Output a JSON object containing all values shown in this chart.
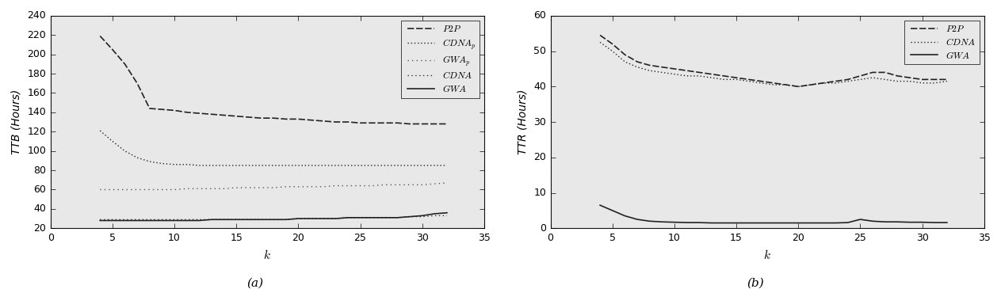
{
  "left": {
    "title": "(a)",
    "xlabel": "k",
    "ylabel": "TTB (Hours)",
    "xlim": [
      0,
      35
    ],
    "ylim": [
      20,
      240
    ],
    "yticks": [
      20,
      40,
      60,
      80,
      100,
      120,
      140,
      160,
      180,
      200,
      220,
      240
    ],
    "xticks": [
      0,
      5,
      10,
      15,
      20,
      25,
      30,
      35
    ],
    "series": {
      "P2P": {
        "x": [
          4,
          5,
          6,
          7,
          8,
          9,
          10,
          11,
          12,
          13,
          14,
          15,
          16,
          17,
          18,
          19,
          20,
          21,
          22,
          23,
          24,
          25,
          26,
          27,
          28,
          29,
          30,
          31,
          32
        ],
        "y": [
          219,
          205,
          190,
          170,
          144,
          143,
          142,
          140,
          139,
          138,
          137,
          136,
          135,
          134,
          134,
          133,
          133,
          132,
          131,
          130,
          130,
          129,
          129,
          129,
          129,
          128,
          128,
          128,
          128
        ]
      },
      "CDNAp": {
        "x": [
          4,
          5,
          6,
          7,
          8,
          9,
          10,
          11,
          12,
          13,
          14,
          15,
          16,
          17,
          18,
          19,
          20,
          21,
          22,
          23,
          24,
          25,
          26,
          27,
          28,
          29,
          30,
          31,
          32
        ],
        "y": [
          121,
          110,
          100,
          93,
          89,
          87,
          86,
          86,
          85,
          85,
          85,
          85,
          85,
          85,
          85,
          85,
          85,
          85,
          85,
          85,
          85,
          85,
          85,
          85,
          85,
          85,
          85,
          85,
          85
        ]
      },
      "GWAp": {
        "x": [
          4,
          5,
          6,
          7,
          8,
          9,
          10,
          11,
          12,
          13,
          14,
          15,
          16,
          17,
          18,
          19,
          20,
          21,
          22,
          23,
          24,
          25,
          26,
          27,
          28,
          29,
          30,
          31,
          32
        ],
        "y": [
          60,
          60,
          60,
          60,
          60,
          60,
          60,
          61,
          61,
          61,
          61,
          62,
          62,
          62,
          62,
          63,
          63,
          63,
          63,
          64,
          64,
          64,
          64,
          65,
          65,
          65,
          65,
          66,
          67
        ]
      },
      "CDNA": {
        "x": [
          4,
          5,
          6,
          7,
          8,
          9,
          10,
          11,
          12,
          13,
          14,
          15,
          16,
          17,
          18,
          19,
          20,
          21,
          22,
          23,
          24,
          25,
          26,
          27,
          28,
          29,
          30,
          31,
          32
        ],
        "y": [
          29,
          29,
          29,
          29,
          29,
          29,
          29,
          29,
          29,
          29,
          29,
          29,
          29,
          29,
          29,
          29,
          30,
          30,
          30,
          30,
          31,
          31,
          31,
          31,
          31,
          32,
          32,
          33,
          33
        ]
      },
      "GWA": {
        "x": [
          4,
          5,
          6,
          7,
          8,
          9,
          10,
          11,
          12,
          13,
          14,
          15,
          16,
          17,
          18,
          19,
          20,
          21,
          22,
          23,
          24,
          25,
          26,
          27,
          28,
          29,
          30,
          31,
          32
        ],
        "y": [
          28,
          28,
          28,
          28,
          28,
          28,
          28,
          28,
          28,
          29,
          29,
          29,
          29,
          29,
          29,
          29,
          30,
          30,
          30,
          30,
          31,
          31,
          31,
          31,
          31,
          32,
          33,
          35,
          36
        ]
      }
    }
  },
  "right": {
    "title": "(b)",
    "xlabel": "k",
    "ylabel": "TTR (Hours)",
    "xlim": [
      0,
      35
    ],
    "ylim": [
      0,
      60
    ],
    "yticks": [
      0,
      10,
      20,
      30,
      40,
      50,
      60
    ],
    "xticks": [
      0,
      5,
      10,
      15,
      20,
      25,
      30,
      35
    ],
    "series": {
      "P2P": {
        "x": [
          4,
          5,
          6,
          7,
          8,
          9,
          10,
          11,
          12,
          13,
          14,
          15,
          16,
          17,
          18,
          19,
          20,
          21,
          22,
          23,
          24,
          25,
          26,
          27,
          28,
          29,
          30,
          31,
          32
        ],
        "y": [
          54.5,
          52,
          49,
          47,
          46,
          45.5,
          45,
          44.5,
          44,
          43.5,
          43,
          42.5,
          42,
          41.5,
          41,
          40.5,
          40,
          40.5,
          41,
          41.5,
          42,
          43,
          44,
          44,
          43,
          42.5,
          42,
          42,
          42
        ]
      },
      "CDNA": {
        "x": [
          4,
          5,
          6,
          7,
          8,
          9,
          10,
          11,
          12,
          13,
          14,
          15,
          16,
          17,
          18,
          19,
          20,
          21,
          22,
          23,
          24,
          25,
          26,
          27,
          28,
          29,
          30,
          31,
          32
        ],
        "y": [
          52.5,
          50,
          47,
          45.5,
          44.5,
          44,
          43.5,
          43,
          43,
          42.5,
          42,
          42,
          41.5,
          41,
          40.5,
          40.5,
          40,
          40.5,
          41,
          41,
          41.5,
          42,
          42.5,
          42,
          41.5,
          41.5,
          41,
          41,
          41.5
        ]
      },
      "GWA": {
        "x": [
          4,
          5,
          6,
          7,
          8,
          9,
          10,
          11,
          12,
          13,
          14,
          15,
          16,
          17,
          18,
          19,
          20,
          21,
          22,
          23,
          24,
          25,
          26,
          27,
          28,
          29,
          30,
          31,
          32
        ],
        "y": [
          6.5,
          5,
          3.5,
          2.5,
          2,
          1.8,
          1.7,
          1.6,
          1.6,
          1.5,
          1.5,
          1.5,
          1.5,
          1.5,
          1.5,
          1.5,
          1.5,
          1.5,
          1.5,
          1.5,
          1.6,
          2.5,
          2,
          1.8,
          1.8,
          1.7,
          1.7,
          1.6,
          1.6
        ]
      }
    }
  },
  "fig_width": 12.63,
  "fig_height": 3.65,
  "dpi": 100
}
